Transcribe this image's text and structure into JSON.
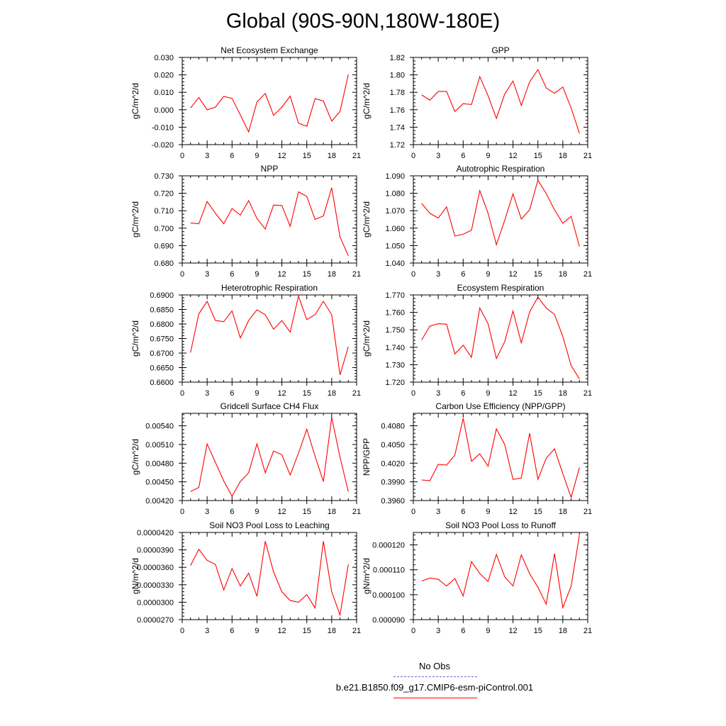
{
  "title": "Global (90S-90N,180W-180E)",
  "line_color": "#ff0000",
  "obs_color": "#6666cc",
  "legend": {
    "obs_label": "No Obs",
    "case_label": "b.e21.B1850.f09_g17.CMIP6-esm-piControl.001"
  },
  "chart_data": [
    {
      "type": "line",
      "title": "Net Ecosystem Exchange",
      "ylabel": "gC/m^2/d",
      "ylim": [
        -0.02,
        0.03
      ],
      "yticks": [
        "-0.020",
        "-0.010",
        "0.000",
        "0.010",
        "0.020",
        "0.030"
      ],
      "xlim": [
        0,
        21
      ],
      "xticks": [
        "0",
        "3",
        "6",
        "9",
        "12",
        "15",
        "18",
        "21"
      ],
      "x": [
        1,
        2,
        3,
        4,
        5,
        6,
        7,
        8,
        9,
        10,
        11,
        12,
        13,
        14,
        15,
        16,
        17,
        18,
        19,
        20
      ],
      "series": [
        {
          "values": [
            0.001,
            0.007,
            0.0,
            0.0015,
            0.0077,
            0.0065,
            -0.003,
            -0.0127,
            0.0045,
            0.0093,
            -0.0032,
            0.0015,
            0.0078,
            -0.0077,
            -0.0095,
            0.0064,
            0.005,
            -0.0065,
            -0.001,
            0.0202
          ]
        }
      ]
    },
    {
      "type": "line",
      "title": "GPP",
      "ylabel": "gC/m^2/d",
      "ylim": [
        1.72,
        1.82
      ],
      "yticks": [
        "1.72",
        "1.74",
        "1.76",
        "1.78",
        "1.80",
        "1.82"
      ],
      "xlim": [
        0,
        21
      ],
      "xticks": [
        "0",
        "3",
        "6",
        "9",
        "12",
        "15",
        "18",
        "21"
      ],
      "x": [
        1,
        2,
        3,
        4,
        5,
        6,
        7,
        8,
        9,
        10,
        11,
        12,
        13,
        14,
        15,
        16,
        17,
        18,
        19,
        20
      ],
      "series": [
        {
          "values": [
            1.777,
            1.771,
            1.781,
            1.781,
            1.758,
            1.767,
            1.766,
            1.798,
            1.776,
            1.75,
            1.778,
            1.793,
            1.765,
            1.792,
            1.806,
            1.785,
            1.779,
            1.786,
            1.762,
            1.733
          ]
        }
      ]
    },
    {
      "type": "line",
      "title": "NPP",
      "ylabel": "gC/m^2/d",
      "ylim": [
        0.68,
        0.73
      ],
      "yticks": [
        "0.680",
        "0.690",
        "0.700",
        "0.710",
        "0.720",
        "0.730"
      ],
      "xlim": [
        0,
        21
      ],
      "xticks": [
        "0",
        "3",
        "6",
        "9",
        "12",
        "15",
        "18",
        "21"
      ],
      "x": [
        1,
        2,
        3,
        4,
        5,
        6,
        7,
        8,
        9,
        10,
        11,
        12,
        13,
        14,
        15,
        16,
        17,
        18,
        19,
        20
      ],
      "series": [
        {
          "values": [
            0.703,
            0.7025,
            0.7153,
            0.7085,
            0.7025,
            0.7112,
            0.7075,
            0.7158,
            0.7055,
            0.6995,
            0.7132,
            0.713,
            0.701,
            0.7208,
            0.7182,
            0.705,
            0.707,
            0.7232,
            0.695,
            0.6842
          ]
        }
      ]
    },
    {
      "type": "line",
      "title": "Autotrophic Respiration",
      "ylabel": "gC/m^2/d",
      "ylim": [
        1.04,
        1.09
      ],
      "yticks": [
        "1.040",
        "1.050",
        "1.060",
        "1.070",
        "1.080",
        "1.090"
      ],
      "xlim": [
        0,
        21
      ],
      "xticks": [
        "0",
        "3",
        "6",
        "9",
        "12",
        "15",
        "18",
        "21"
      ],
      "x": [
        1,
        2,
        3,
        4,
        5,
        6,
        7,
        8,
        9,
        10,
        11,
        12,
        13,
        14,
        15,
        16,
        17,
        18,
        19,
        20
      ],
      "series": [
        {
          "values": [
            1.0742,
            1.0685,
            1.0658,
            1.0722,
            1.0555,
            1.0565,
            1.0588,
            1.0815,
            1.0685,
            1.0505,
            1.0645,
            1.0797,
            1.0652,
            1.0705,
            1.0875,
            1.0798,
            1.0705,
            1.0628,
            1.0668,
            1.0495
          ]
        }
      ]
    },
    {
      "type": "line",
      "title": "Heterotrophic Respiration",
      "ylabel": "gC/m^2/d",
      "ylim": [
        0.66,
        0.69
      ],
      "yticks": [
        "0.6600",
        "0.6650",
        "0.6700",
        "0.6750",
        "0.6800",
        "0.6850",
        "0.6900"
      ],
      "xlim": [
        0,
        21
      ],
      "xticks": [
        "0",
        "3",
        "6",
        "9",
        "12",
        "15",
        "18",
        "21"
      ],
      "x": [
        1,
        2,
        3,
        4,
        5,
        6,
        7,
        8,
        9,
        10,
        11,
        12,
        13,
        14,
        15,
        16,
        17,
        18,
        19,
        20
      ],
      "series": [
        {
          "values": [
            0.6702,
            0.6835,
            0.6878,
            0.6812,
            0.6808,
            0.6845,
            0.6752,
            0.6812,
            0.6849,
            0.6832,
            0.6782,
            0.6812,
            0.6772,
            0.6896,
            0.6815,
            0.6832,
            0.6878,
            0.6832,
            0.6625,
            0.6722
          ]
        }
      ]
    },
    {
      "type": "line",
      "title": "Ecosystem Respiration",
      "ylabel": "gC/m^2/d",
      "ylim": [
        1.72,
        1.77
      ],
      "yticks": [
        "1.720",
        "1.730",
        "1.740",
        "1.750",
        "1.760",
        "1.770"
      ],
      "xlim": [
        0,
        21
      ],
      "xticks": [
        "0",
        "3",
        "6",
        "9",
        "12",
        "15",
        "18",
        "21"
      ],
      "x": [
        1,
        2,
        3,
        4,
        5,
        6,
        7,
        8,
        9,
        10,
        11,
        12,
        13,
        14,
        15,
        16,
        17,
        18,
        19,
        20
      ],
      "series": [
        {
          "values": [
            1.7442,
            1.7522,
            1.7535,
            1.7532,
            1.7362,
            1.7412,
            1.7342,
            1.7625,
            1.7535,
            1.7335,
            1.7432,
            1.7608,
            1.7425,
            1.7602,
            1.7688,
            1.7625,
            1.7588,
            1.7462,
            1.7295,
            1.7218
          ]
        }
      ]
    },
    {
      "type": "line",
      "title": "Gridcell Surface CH4 Flux",
      "ylabel": "gC/m^2/d",
      "ylim": [
        0.0042,
        0.0056
      ],
      "yticks": [
        "0.00420",
        "0.00450",
        "0.00480",
        "0.00510",
        "0.00540"
      ],
      "xlim": [
        0,
        21
      ],
      "xticks": [
        "0",
        "3",
        "6",
        "9",
        "12",
        "15",
        "18",
        "21"
      ],
      "x": [
        1,
        2,
        3,
        4,
        5,
        6,
        7,
        8,
        9,
        10,
        11,
        12,
        13,
        14,
        15,
        16,
        17,
        18,
        19,
        20
      ],
      "series": [
        {
          "values": [
            0.004345,
            0.00441,
            0.00511,
            0.00481,
            0.004515,
            0.00427,
            0.004505,
            0.004645,
            0.00511,
            0.004645,
            0.004995,
            0.004935,
            0.00461,
            0.00496,
            0.005345,
            0.00491,
            0.004505,
            0.005535,
            0.004895,
            0.004345
          ]
        }
      ]
    },
    {
      "type": "line",
      "title": "Carbon Use Efficiency (NPP/GPP)",
      "ylabel": "NPP/GPP",
      "ylim": [
        0.396,
        0.41
      ],
      "yticks": [
        "0.3960",
        "0.3990",
        "0.4020",
        "0.4050",
        "0.4080"
      ],
      "xlim": [
        0,
        21
      ],
      "xticks": [
        "0",
        "3",
        "6",
        "9",
        "12",
        "15",
        "18",
        "21"
      ],
      "x": [
        1,
        2,
        3,
        4,
        5,
        6,
        7,
        8,
        9,
        10,
        11,
        12,
        13,
        14,
        15,
        16,
        17,
        18,
        19,
        20
      ],
      "series": [
        {
          "values": [
            0.3993,
            0.3992,
            0.4018,
            0.4017,
            0.4033,
            0.4092,
            0.4023,
            0.4035,
            0.4015,
            0.4075,
            0.405,
            0.3994,
            0.3996,
            0.4068,
            0.3994,
            0.4028,
            0.4043,
            0.4003,
            0.3965,
            0.4013
          ]
        }
      ]
    },
    {
      "type": "line",
      "title": "Soil NO3 Pool Loss to Leaching",
      "ylabel": "gN/m^2/d",
      "ylim": [
        2.7e-05,
        4.2e-05
      ],
      "yticks": [
        "0.0000270",
        "0.0000300",
        "0.0000330",
        "0.0000360",
        "0.0000390",
        "0.0000420"
      ],
      "xlim": [
        0,
        21
      ],
      "xticks": [
        "0",
        "3",
        "6",
        "9",
        "12",
        "15",
        "18",
        "21"
      ],
      "x": [
        1,
        2,
        3,
        4,
        5,
        6,
        7,
        8,
        9,
        10,
        11,
        12,
        13,
        14,
        15,
        16,
        17,
        18,
        19,
        20
      ],
      "series": [
        {
          "values": [
            3.63e-05,
            3.91e-05,
            3.72e-05,
            3.65e-05,
            3.21e-05,
            3.58e-05,
            3.28e-05,
            3.5e-05,
            3.1e-05,
            4.05e-05,
            3.52e-05,
            3.18e-05,
            3.03e-05,
            3e-05,
            3.13e-05,
            2.9e-05,
            4.05e-05,
            3.18e-05,
            2.78e-05,
            3.65e-05
          ]
        }
      ]
    },
    {
      "type": "line",
      "title": "Soil NO3 Pool Loss to Runoff",
      "ylabel": "gN/m^2/d",
      "ylim": [
        9e-05,
        0.000125
      ],
      "yticks": [
        "0.000090",
        "0.000100",
        "0.000110",
        "0.000120"
      ],
      "xlim": [
        0,
        21
      ],
      "xticks": [
        "0",
        "3",
        "6",
        "9",
        "12",
        "15",
        "18",
        "21"
      ],
      "x": [
        1,
        2,
        3,
        4,
        5,
        6,
        7,
        8,
        9,
        10,
        11,
        12,
        13,
        14,
        15,
        16,
        17,
        18,
        19,
        20
      ],
      "series": [
        {
          "values": [
            0.0001055,
            0.0001067,
            0.0001062,
            0.0001035,
            0.0001065,
            9.95e-05,
            0.0001133,
            0.0001085,
            0.0001053,
            0.0001162,
            0.0001072,
            0.0001035,
            0.000116,
            0.0001085,
            0.000103,
            9.62e-05,
            0.0001165,
            9.48e-05,
            0.0001035,
            0.000124
          ]
        }
      ]
    }
  ]
}
